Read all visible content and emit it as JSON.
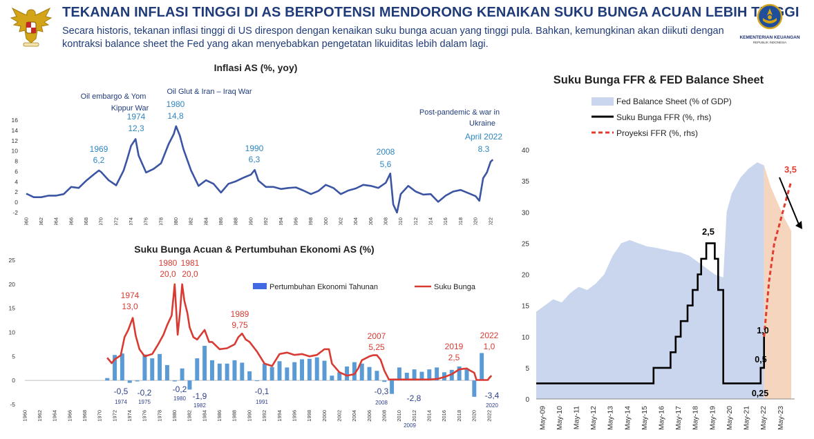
{
  "header": {
    "title": "TEKANAN INFLASI TINGGI DI AS BERPOTENSI MENDORONG KENAIKAN SUKU BUNGA ACUAN LEBIH TINGGI",
    "subtitle": "Secara historis, tekanan inflasi tinggi di US direspon dengan kenaikan suku bunga acuan yang tinggi pula. Bahkan, kemungkinan akan diikuti dengan kontraksi balance sheet the Fed yang akan menyebabkan pengetatan likuiditas lebih dalam lagi.",
    "logo_name": "KEMENTERIAN KEUANGAN",
    "logo_sub": "REPUBLIK INDONESIA"
  },
  "colors": {
    "title": "#1f3b7a",
    "inflation_line": "#3b54a3",
    "inflation_label": "#2e86c1",
    "rate_line": "#d93a32",
    "gdp_bar": "#5b9bd5",
    "balance_sheet": "#c9d6ee",
    "balance_proj": "#f5d5bd",
    "ffr": "#000000",
    "ffr_proj": "#e03c31"
  },
  "chart_data": [
    {
      "type": "line",
      "title": "Inflasi AS (%, yoy)",
      "ylim": [
        -2,
        16
      ],
      "yticks": [
        "-2",
        "0",
        "2",
        "4",
        "6",
        "8",
        "10",
        "12",
        "14",
        "16"
      ],
      "xlim": [
        1960,
        2022
      ],
      "xticks": [
        "1960",
        "1962",
        "1964",
        "1966",
        "1968",
        "1970",
        "1972",
        "1974",
        "1976",
        "1978",
        "1980",
        "1982",
        "1984",
        "1986",
        "1988",
        "1990",
        "1992",
        "1994",
        "1996",
        "1998",
        "2000",
        "2002",
        "2004",
        "2006",
        "2008",
        "2010",
        "2012",
        "2014",
        "2016",
        "2018",
        "2020",
        "2022"
      ],
      "series": [
        {
          "x": [
            1960,
            1961,
            1962,
            1963,
            1964,
            1965,
            1966,
            1967,
            1968,
            1969,
            1969.7,
            1970,
            1971,
            1972,
            1973,
            1973.5,
            1974,
            1974.6,
            1975,
            1976,
            1977,
            1978,
            1979,
            1979.7,
            1980,
            1980.5,
            1981,
            1982,
            1983,
            1984,
            1985,
            1986,
            1987,
            1988,
            1989,
            1990,
            1990.5,
            1991,
            1992,
            1993,
            1994,
            1995,
            1996,
            1997,
            1998,
            1999,
            2000,
            2001,
            2002,
            2003,
            2004,
            2005,
            2006,
            2007,
            2008,
            2008.6,
            2009,
            2009.5,
            2010,
            2011,
            2012,
            2013,
            2014,
            2015,
            2016,
            2017,
            2018,
            2019,
            2020,
            2020.5,
            2021,
            2021.5,
            2022,
            2022.3
          ],
          "y": [
            1.7,
            1.0,
            1.0,
            1.3,
            1.3,
            1.6,
            3.0,
            2.8,
            4.2,
            5.4,
            6.2,
            5.9,
            4.3,
            3.3,
            6.2,
            8.5,
            11.0,
            12.3,
            9.1,
            5.8,
            6.5,
            7.6,
            11.3,
            13.3,
            14.8,
            13.0,
            10.3,
            6.2,
            3.2,
            4.3,
            3.6,
            1.9,
            3.6,
            4.1,
            4.8,
            5.4,
            6.3,
            4.2,
            3.0,
            3.0,
            2.6,
            2.8,
            2.9,
            2.3,
            1.6,
            2.2,
            3.4,
            2.8,
            1.6,
            2.3,
            2.7,
            3.4,
            3.2,
            2.8,
            3.8,
            5.6,
            -0.4,
            -2.0,
            1.6,
            3.2,
            2.1,
            1.5,
            1.6,
            0.1,
            1.3,
            2.1,
            2.4,
            1.8,
            1.2,
            0.3,
            4.7,
            5.8,
            7.9,
            8.3
          ]
        }
      ],
      "annotations": [
        {
          "label": "Oil embargo & Yom",
          "label2": "Kippur War",
          "year": "1974",
          "value": "12,3"
        },
        {
          "label": "Oil Glut & Iran – Iraq War",
          "year": "1980",
          "value": "14,8"
        },
        {
          "year": "1969",
          "value": "6,2"
        },
        {
          "year": "1990",
          "value": "6,3"
        },
        {
          "year": "2008",
          "value": "5,6"
        },
        {
          "label": "Post-pandemic & war in",
          "label2": "Ukraine",
          "year": "April 2022",
          "value": "8.3"
        }
      ]
    },
    {
      "type": "bar",
      "title": "Suku Bunga Acuan & Pertumbuhan Ekonomi AS (%)",
      "ylim": [
        -5,
        25
      ],
      "yticks": [
        "-5",
        "0",
        "5",
        "10",
        "15",
        "20",
        "25"
      ],
      "xlim": [
        1960,
        2022
      ],
      "xticks": [
        "1960",
        "1962",
        "1964",
        "1966",
        "1968",
        "1970",
        "1972",
        "1974",
        "1976",
        "1978",
        "1980",
        "1982",
        "1984",
        "1986",
        "1988",
        "1990",
        "1992",
        "1994",
        "1996",
        "1998",
        "2000",
        "2002",
        "2004",
        "2006",
        "2008",
        "2010",
        "2012",
        "2014",
        "2016",
        "2018",
        "2020",
        "2022"
      ],
      "series": [
        {
          "name": "Pertumbuhan Ekonomi Tahunan",
          "type": "bar",
          "x": [
            1971,
            1972,
            1973,
            1974,
            1975,
            1976,
            1977,
            1978,
            1979,
            1980,
            1981,
            1982,
            1983,
            1984,
            1985,
            1986,
            1987,
            1988,
            1989,
            1990,
            1991,
            1992,
            1993,
            1994,
            1995,
            1996,
            1997,
            1998,
            1999,
            2000,
            2001,
            2002,
            2003,
            2004,
            2005,
            2006,
            2007,
            2008,
            2009,
            2010,
            2011,
            2012,
            2013,
            2014,
            2015,
            2016,
            2017,
            2018,
            2019,
            2020,
            2021
          ],
          "values": [
            0.5,
            5.3,
            5.6,
            -0.5,
            -0.2,
            5.4,
            4.6,
            5.5,
            3.2,
            -0.2,
            2.5,
            -1.9,
            4.6,
            7.2,
            4.2,
            3.5,
            3.5,
            4.2,
            3.7,
            1.9,
            -0.1,
            3.5,
            2.8,
            4.0,
            2.7,
            3.8,
            4.4,
            4.5,
            4.8,
            4.1,
            1.0,
            1.7,
            2.9,
            3.8,
            3.5,
            2.8,
            2.0,
            -0.3,
            -2.8,
            2.7,
            1.6,
            2.3,
            1.8,
            2.3,
            2.7,
            1.7,
            2.2,
            2.9,
            2.3,
            -3.4,
            5.7
          ]
        },
        {
          "name": "Suku Bunga",
          "type": "line",
          "x": [
            1971,
            1971.6,
            1972,
            1972.8,
            1973.3,
            1973.8,
            1974.4,
            1974.8,
            1975.3,
            1976,
            1977,
            1977.8,
            1978.5,
            1979,
            1979.6,
            1980,
            1980.4,
            1980.7,
            1981,
            1981.3,
            1981.7,
            1982,
            1982.5,
            1983,
            1984,
            1984.6,
            1985,
            1986,
            1987,
            1988,
            1988.5,
            1989,
            1989.5,
            1990,
            1991,
            1992,
            1993,
            1994,
            1995,
            1996,
            1997,
            1998,
            1999,
            2000,
            2000.6,
            2001,
            2002,
            2003,
            2004,
            2004.5,
            2005,
            2006,
            2006.5,
            2007,
            2007.5,
            2008,
            2008.6,
            2009,
            2010,
            2011,
            2012,
            2013,
            2014,
            2015,
            2016,
            2017,
            2018,
            2019,
            2019.5,
            2020,
            2020.3,
            2021,
            2021.8,
            2022,
            2022.3
          ],
          "values": [
            4.7,
            3.6,
            4.4,
            5.2,
            9.0,
            10.5,
            13.0,
            9.3,
            6.5,
            5.0,
            5.5,
            7.5,
            9.5,
            11.5,
            13.5,
            20.0,
            9.5,
            14.0,
            20.0,
            16.5,
            14.0,
            11.0,
            9.0,
            8.5,
            10.5,
            8.0,
            8.0,
            6.5,
            6.7,
            7.5,
            9.0,
            9.75,
            8.5,
            8.0,
            6.0,
            3.5,
            3.0,
            5.5,
            5.8,
            5.3,
            5.5,
            5.0,
            5.3,
            6.5,
            6.5,
            3.5,
            1.7,
            1.0,
            1.3,
            2.5,
            4.2,
            5.0,
            5.25,
            5.25,
            4.3,
            2.0,
            0.2,
            0.2,
            0.2,
            0.2,
            0.2,
            0.2,
            0.2,
            0.3,
            0.7,
            1.3,
            2.3,
            2.5,
            2.0,
            1.6,
            0.1,
            0.1,
            0.1,
            0.5,
            1.0
          ]
        }
      ],
      "annotations_rate": [
        {
          "year": "1974",
          "value": "13,0"
        },
        {
          "year": "1980",
          "value": "20,0"
        },
        {
          "year": "1981",
          "value": "20,0"
        },
        {
          "year": "1989",
          "value": "9,75"
        },
        {
          "year": "2007",
          "value": "5,25"
        },
        {
          "year": "2019",
          "value": "2,5"
        },
        {
          "year": "2022",
          "value": "1,0"
        }
      ],
      "annotations_gdp": [
        {
          "value": "-0,5",
          "year": "1974"
        },
        {
          "value": "-0,2",
          "year": "1975"
        },
        {
          "value": "-0,2",
          "year": "1980"
        },
        {
          "value": "-1,9",
          "year": "1982"
        },
        {
          "value": "-0,1",
          "year": "1991"
        },
        {
          "value": "-0,3",
          "year": "2008"
        },
        {
          "value": "-2,8",
          "year": "2009"
        },
        {
          "value": "-3,4",
          "year": "2020"
        }
      ]
    },
    {
      "type": "area",
      "title": "Suku Bunga FFR & FED Balance Sheet",
      "ylim": [
        0,
        40
      ],
      "yticks": [
        "0",
        "5",
        "10",
        "15",
        "20",
        "25",
        "30",
        "35",
        "40"
      ],
      "xticks": [
        "May-09",
        "May-10",
        "May-11",
        "May-12",
        "May-13",
        "May-14",
        "May-15",
        "May-16",
        "May-17",
        "May-18",
        "May-19",
        "May-20",
        "May-21",
        "May-22",
        "May-23"
      ],
      "legend": [
        "Fed Balance Sheet (% of GDP)",
        "Suku Bunga FFR (%, rhs)",
        "Proyeksi FFR (%, rhs)"
      ],
      "balance_sheet": {
        "t": [
          2009.0,
          2009.5,
          2010.0,
          2010.5,
          2011.0,
          2011.5,
          2012.0,
          2012.5,
          2013.0,
          2013.5,
          2014.0,
          2014.5,
          2015.0,
          2015.5,
          2016.0,
          2016.5,
          2017.0,
          2017.5,
          2018.0,
          2018.5,
          2019.0,
          2019.5,
          2020.0,
          2020.2,
          2020.5,
          2021.0,
          2021.5,
          2022.0,
          2022.4
        ],
        "values": [
          14,
          15,
          16,
          15.5,
          17,
          18,
          17.5,
          18.5,
          20,
          23,
          25,
          25.5,
          25,
          24.5,
          24.3,
          24,
          23.7,
          23.5,
          23,
          22,
          21,
          20,
          19.5,
          30,
          33,
          35.5,
          37,
          38,
          37.5
        ]
      },
      "balance_sheet_projection": {
        "t": [
          2022.4,
          2022.8,
          2023.2,
          2023.6,
          2024.0
        ],
        "values": [
          37.5,
          34,
          31.5,
          29,
          27
        ]
      },
      "ffr": {
        "t": [
          2009.0,
          2015.9,
          2015.9,
          2016.9,
          2016.9,
          2017.2,
          2017.2,
          2017.5,
          2017.5,
          2017.9,
          2017.9,
          2018.2,
          2018.2,
          2018.5,
          2018.5,
          2018.7,
          2018.7,
          2019.0,
          2019.0,
          2019.5,
          2019.5,
          2019.7,
          2019.7,
          2020.0,
          2020.0,
          2020.2,
          2020.2,
          2022.2,
          2022.2,
          2022.4,
          2022.4
        ],
        "values": [
          0.25,
          0.25,
          0.5,
          0.5,
          0.75,
          0.75,
          1.0,
          1.0,
          1.25,
          1.25,
          1.5,
          1.5,
          1.75,
          1.75,
          2.0,
          2.0,
          2.25,
          2.25,
          2.5,
          2.5,
          2.25,
          2.25,
          1.75,
          1.75,
          0.25,
          0.25,
          0.25,
          0.25,
          0.5,
          0.5,
          1.0
        ]
      },
      "ffr_projection": {
        "t": [
          2022.4,
          2022.7,
          2023.0,
          2023.3,
          2023.6,
          2024.0
        ],
        "values": [
          1.0,
          1.9,
          2.5,
          2.8,
          3.1,
          3.5
        ]
      },
      "labels": {
        "peak": "2,5",
        "low": "0,25",
        "mid": "0,5",
        "now": "1,0",
        "proj": "3,5"
      }
    }
  ]
}
